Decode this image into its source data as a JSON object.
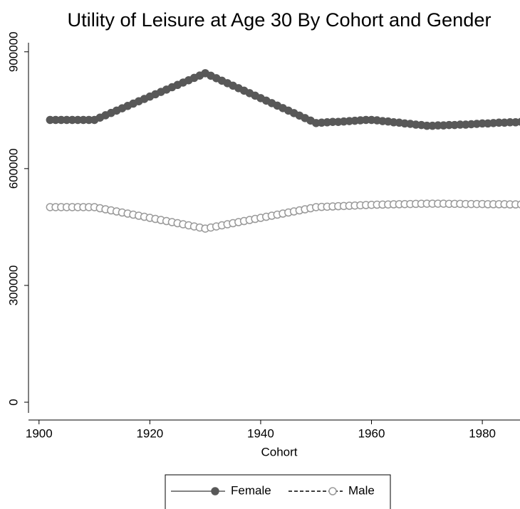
{
  "chart_data": {
    "type": "line",
    "title": "Utility of Leisure at Age 30 By Cohort and Gender",
    "xlabel": "Cohort",
    "x": [
      1902,
      1903,
      1904,
      1905,
      1906,
      1907,
      1908,
      1909,
      1910,
      1911,
      1912,
      1913,
      1914,
      1915,
      1916,
      1917,
      1918,
      1919,
      1920,
      1921,
      1922,
      1923,
      1924,
      1925,
      1926,
      1927,
      1928,
      1929,
      1930,
      1931,
      1932,
      1933,
      1934,
      1935,
      1936,
      1937,
      1938,
      1939,
      1940,
      1941,
      1942,
      1943,
      1944,
      1945,
      1946,
      1947,
      1948,
      1949,
      1950,
      1951,
      1952,
      1953,
      1954,
      1955,
      1956,
      1957,
      1958,
      1959,
      1960,
      1961,
      1962,
      1963,
      1964,
      1965,
      1966,
      1967,
      1968,
      1969,
      1970,
      1971,
      1972,
      1973,
      1974,
      1975,
      1976,
      1977,
      1978,
      1979,
      1980,
      1981,
      1982,
      1983,
      1984,
      1985,
      1986,
      1987
    ],
    "series": [
      {
        "name": "Female",
        "color": "#585858",
        "marker_fill": "#585858",
        "dashed": false,
        "values": [
          725000,
          725000,
          725000,
          725000,
          725000,
          725000,
          725000,
          725000,
          725000,
          731000,
          737000,
          743000,
          749000,
          755000,
          761000,
          767000,
          773000,
          779000,
          785000,
          791000,
          797000,
          803000,
          809000,
          815000,
          821000,
          827000,
          833000,
          839000,
          845000,
          838600,
          832200,
          825800,
          819400,
          813000,
          806600,
          800200,
          793800,
          787400,
          781000,
          774600,
          768200,
          761800,
          755400,
          749000,
          742600,
          736200,
          729800,
          723400,
          717000,
          718000,
          719000,
          720000,
          720000,
          721000,
          722000,
          723000,
          724000,
          725000,
          725000,
          724000,
          722000,
          721000,
          719000,
          718000,
          716000,
          715000,
          713000,
          712000,
          710000,
          710000,
          711000,
          711000,
          712000,
          712000,
          713000,
          713000,
          714000,
          715000,
          716000,
          716000,
          717000,
          718000,
          718000,
          719000,
          719000,
          720000
        ]
      },
      {
        "name": "Male",
        "color": "#000000",
        "marker_fill": "#ffffff",
        "marker_stroke": "#9a9a9a",
        "dashed": true,
        "values": [
          501000,
          501000,
          501000,
          501000,
          501000,
          501000,
          501000,
          501000,
          501000,
          498250,
          495500,
          492750,
          490000,
          487250,
          484500,
          481750,
          479000,
          476250,
          473500,
          470750,
          468000,
          465250,
          462500,
          459750,
          457000,
          454250,
          451500,
          448750,
          446000,
          448750,
          451500,
          454250,
          457000,
          459750,
          462500,
          465250,
          468000,
          470750,
          473500,
          476250,
          479000,
          481750,
          484500,
          487250,
          490000,
          492750,
          495500,
          498250,
          501000,
          501600,
          502200,
          502800,
          503400,
          504000,
          504600,
          505200,
          505800,
          506400,
          507000,
          507300,
          507600,
          507900,
          508200,
          508500,
          508800,
          509100,
          509400,
          509700,
          510000,
          510000,
          510000,
          510000,
          509500,
          509500,
          509500,
          509000,
          509000,
          509000,
          509000,
          508500,
          508500,
          508500,
          508500,
          508000,
          508000,
          508000
        ]
      }
    ],
    "xlim": [
      1898.1,
      1986.8
    ],
    "ylim": [
      -45700,
      927000
    ],
    "xticks": [
      1900,
      1920,
      1940,
      1960,
      1980
    ],
    "yticks": [
      0,
      300000,
      600000,
      900000
    ],
    "grid": false,
    "legend": "bottom"
  }
}
